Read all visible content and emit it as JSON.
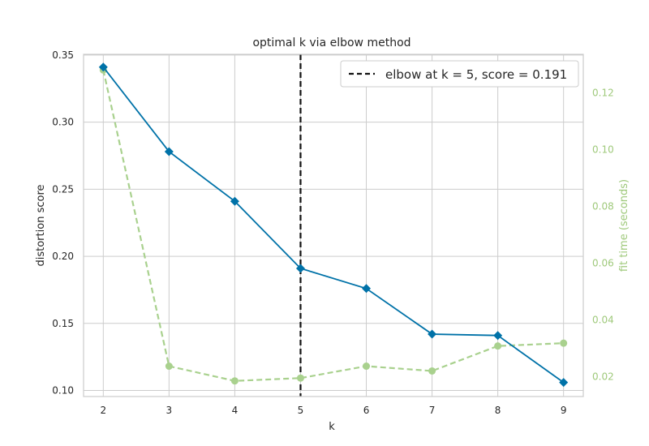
{
  "chart_data": {
    "type": "line",
    "title": "optimal k via elbow method",
    "xlabel": "k",
    "ylabel": "distortion score",
    "y2label": "fit time (seconds)",
    "x": [
      2,
      3,
      4,
      5,
      6,
      7,
      8,
      9
    ],
    "xlim": [
      1.7,
      9.3
    ],
    "ylim": [
      0.0955,
      0.3505
    ],
    "y2lim": [
      0.013,
      0.1335
    ],
    "xticks": [
      "2",
      "3",
      "4",
      "5",
      "6",
      "7",
      "8",
      "9"
    ],
    "yticks": [
      "0.10",
      "0.15",
      "0.20",
      "0.25",
      "0.30",
      "0.35"
    ],
    "y2ticks": [
      "0.02",
      "0.04",
      "0.06",
      "0.08",
      "0.10",
      "0.12"
    ],
    "grid": true,
    "legend_placement": "top-right",
    "series": [
      {
        "key": "distortion",
        "axis": "left",
        "color": "#0072a8",
        "marker": "diamond",
        "values": [
          0.341,
          0.278,
          0.241,
          0.191,
          0.176,
          0.142,
          0.141,
          0.106
        ]
      },
      {
        "key": "fit_time",
        "axis": "right",
        "color": "#a9d18e",
        "marker": "circle",
        "dashed": true,
        "values": [
          0.128,
          0.0237,
          0.0185,
          0.0195,
          0.0237,
          0.022,
          0.0308,
          0.0318
        ]
      }
    ],
    "elbow": {
      "x": 5,
      "color": "#111111",
      "legend_label": "elbow at k = 5, score = 0.191"
    }
  }
}
